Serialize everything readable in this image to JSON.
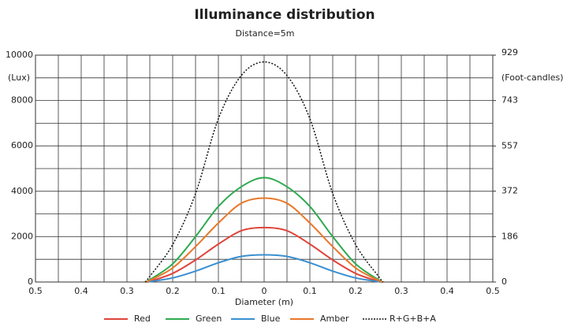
{
  "chart_data": {
    "type": "line",
    "title": "Illuminance distribution",
    "subtitle": "Distance=5m",
    "x_label": "Diameter (m)",
    "y_label": "(Lux)",
    "y2_label": "(Foot-candles)",
    "x": [
      -0.26,
      -0.25,
      -0.2,
      -0.15,
      -0.1,
      -0.05,
      0,
      0.05,
      0.1,
      0.15,
      0.2,
      0.25,
      0.26
    ],
    "series": [
      {
        "name": "Red",
        "color": "#e0443a",
        "values": [
          0,
          30,
          380,
          970,
          1670,
          2260,
          2400,
          2260,
          1670,
          970,
          380,
          30,
          0
        ]
      },
      {
        "name": "Green",
        "color": "#2eaa4f",
        "values": [
          0,
          100,
          800,
          2000,
          3330,
          4200,
          4600,
          4200,
          3330,
          2000,
          800,
          100,
          0
        ]
      },
      {
        "name": "Blue",
        "color": "#3a8fd0",
        "values": [
          0,
          20,
          180,
          480,
          850,
          1130,
          1200,
          1130,
          850,
          480,
          180,
          20,
          0
        ]
      },
      {
        "name": "Amber",
        "color": "#e8782a",
        "values": [
          0,
          70,
          620,
          1560,
          2600,
          3470,
          3700,
          3470,
          2600,
          1560,
          620,
          70,
          0
        ]
      },
      {
        "name": "R+G+B+A",
        "color": "#111111",
        "dashed": true,
        "values": [
          0,
          250,
          1650,
          3900,
          7200,
          9100,
          9700,
          9100,
          7200,
          3900,
          1650,
          250,
          0
        ]
      }
    ],
    "xlim": [
      -0.5,
      0.5
    ],
    "xticks": [
      {
        "value": -0.5,
        "label": "0.5"
      },
      {
        "value": -0.4,
        "label": "0.4"
      },
      {
        "value": -0.3,
        "label": "0.3"
      },
      {
        "value": -0.2,
        "label": "0.2"
      },
      {
        "value": -0.1,
        "label": "0.1"
      },
      0,
      0.1,
      0.2,
      0.3,
      0.4,
      0.5
    ],
    "ylim": [
      0,
      10000
    ],
    "yticks": [
      0,
      2000,
      4000,
      6000,
      8000,
      10000
    ],
    "y2lim": [
      0,
      929
    ],
    "y2ticks": [
      0,
      186,
      372,
      557,
      743,
      929
    ],
    "grid": true
  }
}
